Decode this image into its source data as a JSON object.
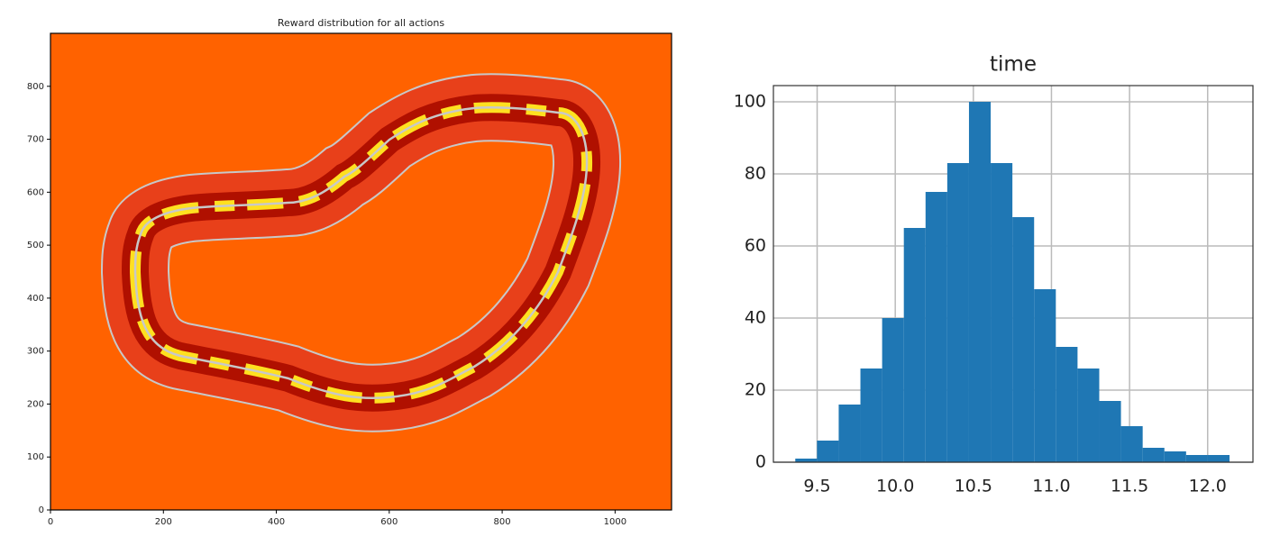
{
  "chart_data": [
    {
      "type": "image",
      "title": "Reward distribution for all actions",
      "xlim": [
        0,
        1100
      ],
      "xticks": [
        0,
        200,
        400,
        600,
        800,
        1000
      ],
      "ylim": [
        0,
        900
      ],
      "yticks": [
        0,
        100,
        200,
        300,
        400,
        500,
        600,
        700,
        800
      ],
      "grid": false
    },
    {
      "type": "histogram",
      "title": "time",
      "color": "#1f77b4",
      "bins": [
        9.36,
        9.499,
        9.638,
        9.777,
        9.916,
        10.055,
        10.194,
        10.333,
        10.472,
        10.611,
        10.75,
        10.889,
        11.028,
        11.167,
        11.306,
        11.445,
        11.584,
        11.723,
        11.862,
        12.001,
        12.14
      ],
      "values": [
        1,
        6,
        16,
        26,
        40,
        65,
        75,
        83,
        100,
        83,
        68,
        48,
        32,
        26,
        17,
        10,
        4,
        3,
        2,
        2
      ],
      "xlim": [
        9.22,
        12.29
      ],
      "xticks": [
        9.5,
        {
          "value": 10.0,
          "label": "10.0"
        },
        10.5,
        {
          "value": 11.0,
          "label": "11.0"
        },
        11.5,
        {
          "value": 12.0,
          "label": "12.0"
        }
      ],
      "ylim": [
        0,
        104.5
      ],
      "yticks": [
        0,
        20,
        40,
        60,
        80,
        100
      ],
      "grid": true
    }
  ]
}
